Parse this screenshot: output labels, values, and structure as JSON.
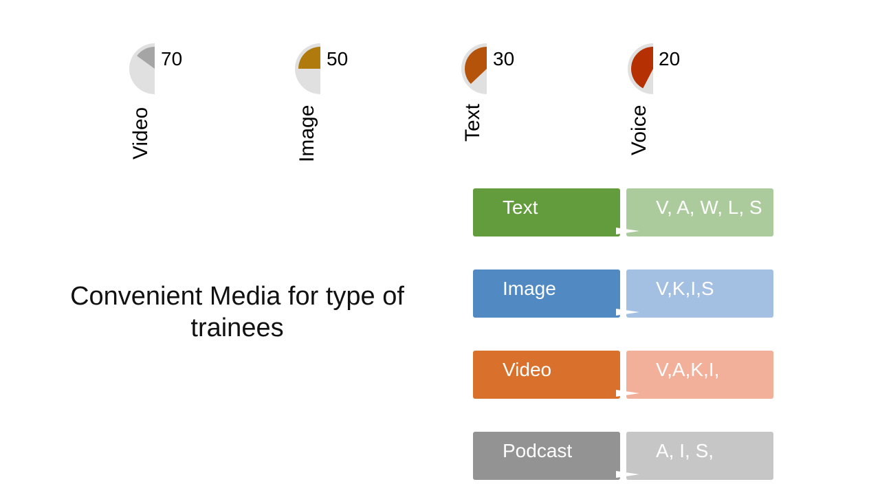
{
  "chart_data": {
    "type": "pie",
    "categories": [
      "Video",
      "Image",
      "Text",
      "Voice"
    ],
    "values": [
      70,
      50,
      30,
      20
    ],
    "colors": [
      "#a5a5a5",
      "#b07a0d",
      "#b45309",
      "#b53003"
    ],
    "track_color": "#e0e0e0"
  },
  "title": "Convenient Media for type of trainees",
  "rows": [
    {
      "media": "Text",
      "types": "V, A, W, L, S",
      "color": "#639c3c",
      "light": "#abcb9d"
    },
    {
      "media": "Image",
      "types": "V,K,I,S",
      "color": "#518ac3",
      "light": "#a3bfe2"
    },
    {
      "media": "Video",
      "types": "V,A,K,I,",
      "color": "#d9712c",
      "light": "#f2b09a"
    },
    {
      "media": "Podcast",
      "types": "A, I, S,",
      "color": "#939393",
      "light": "#c6c6c6"
    }
  ]
}
